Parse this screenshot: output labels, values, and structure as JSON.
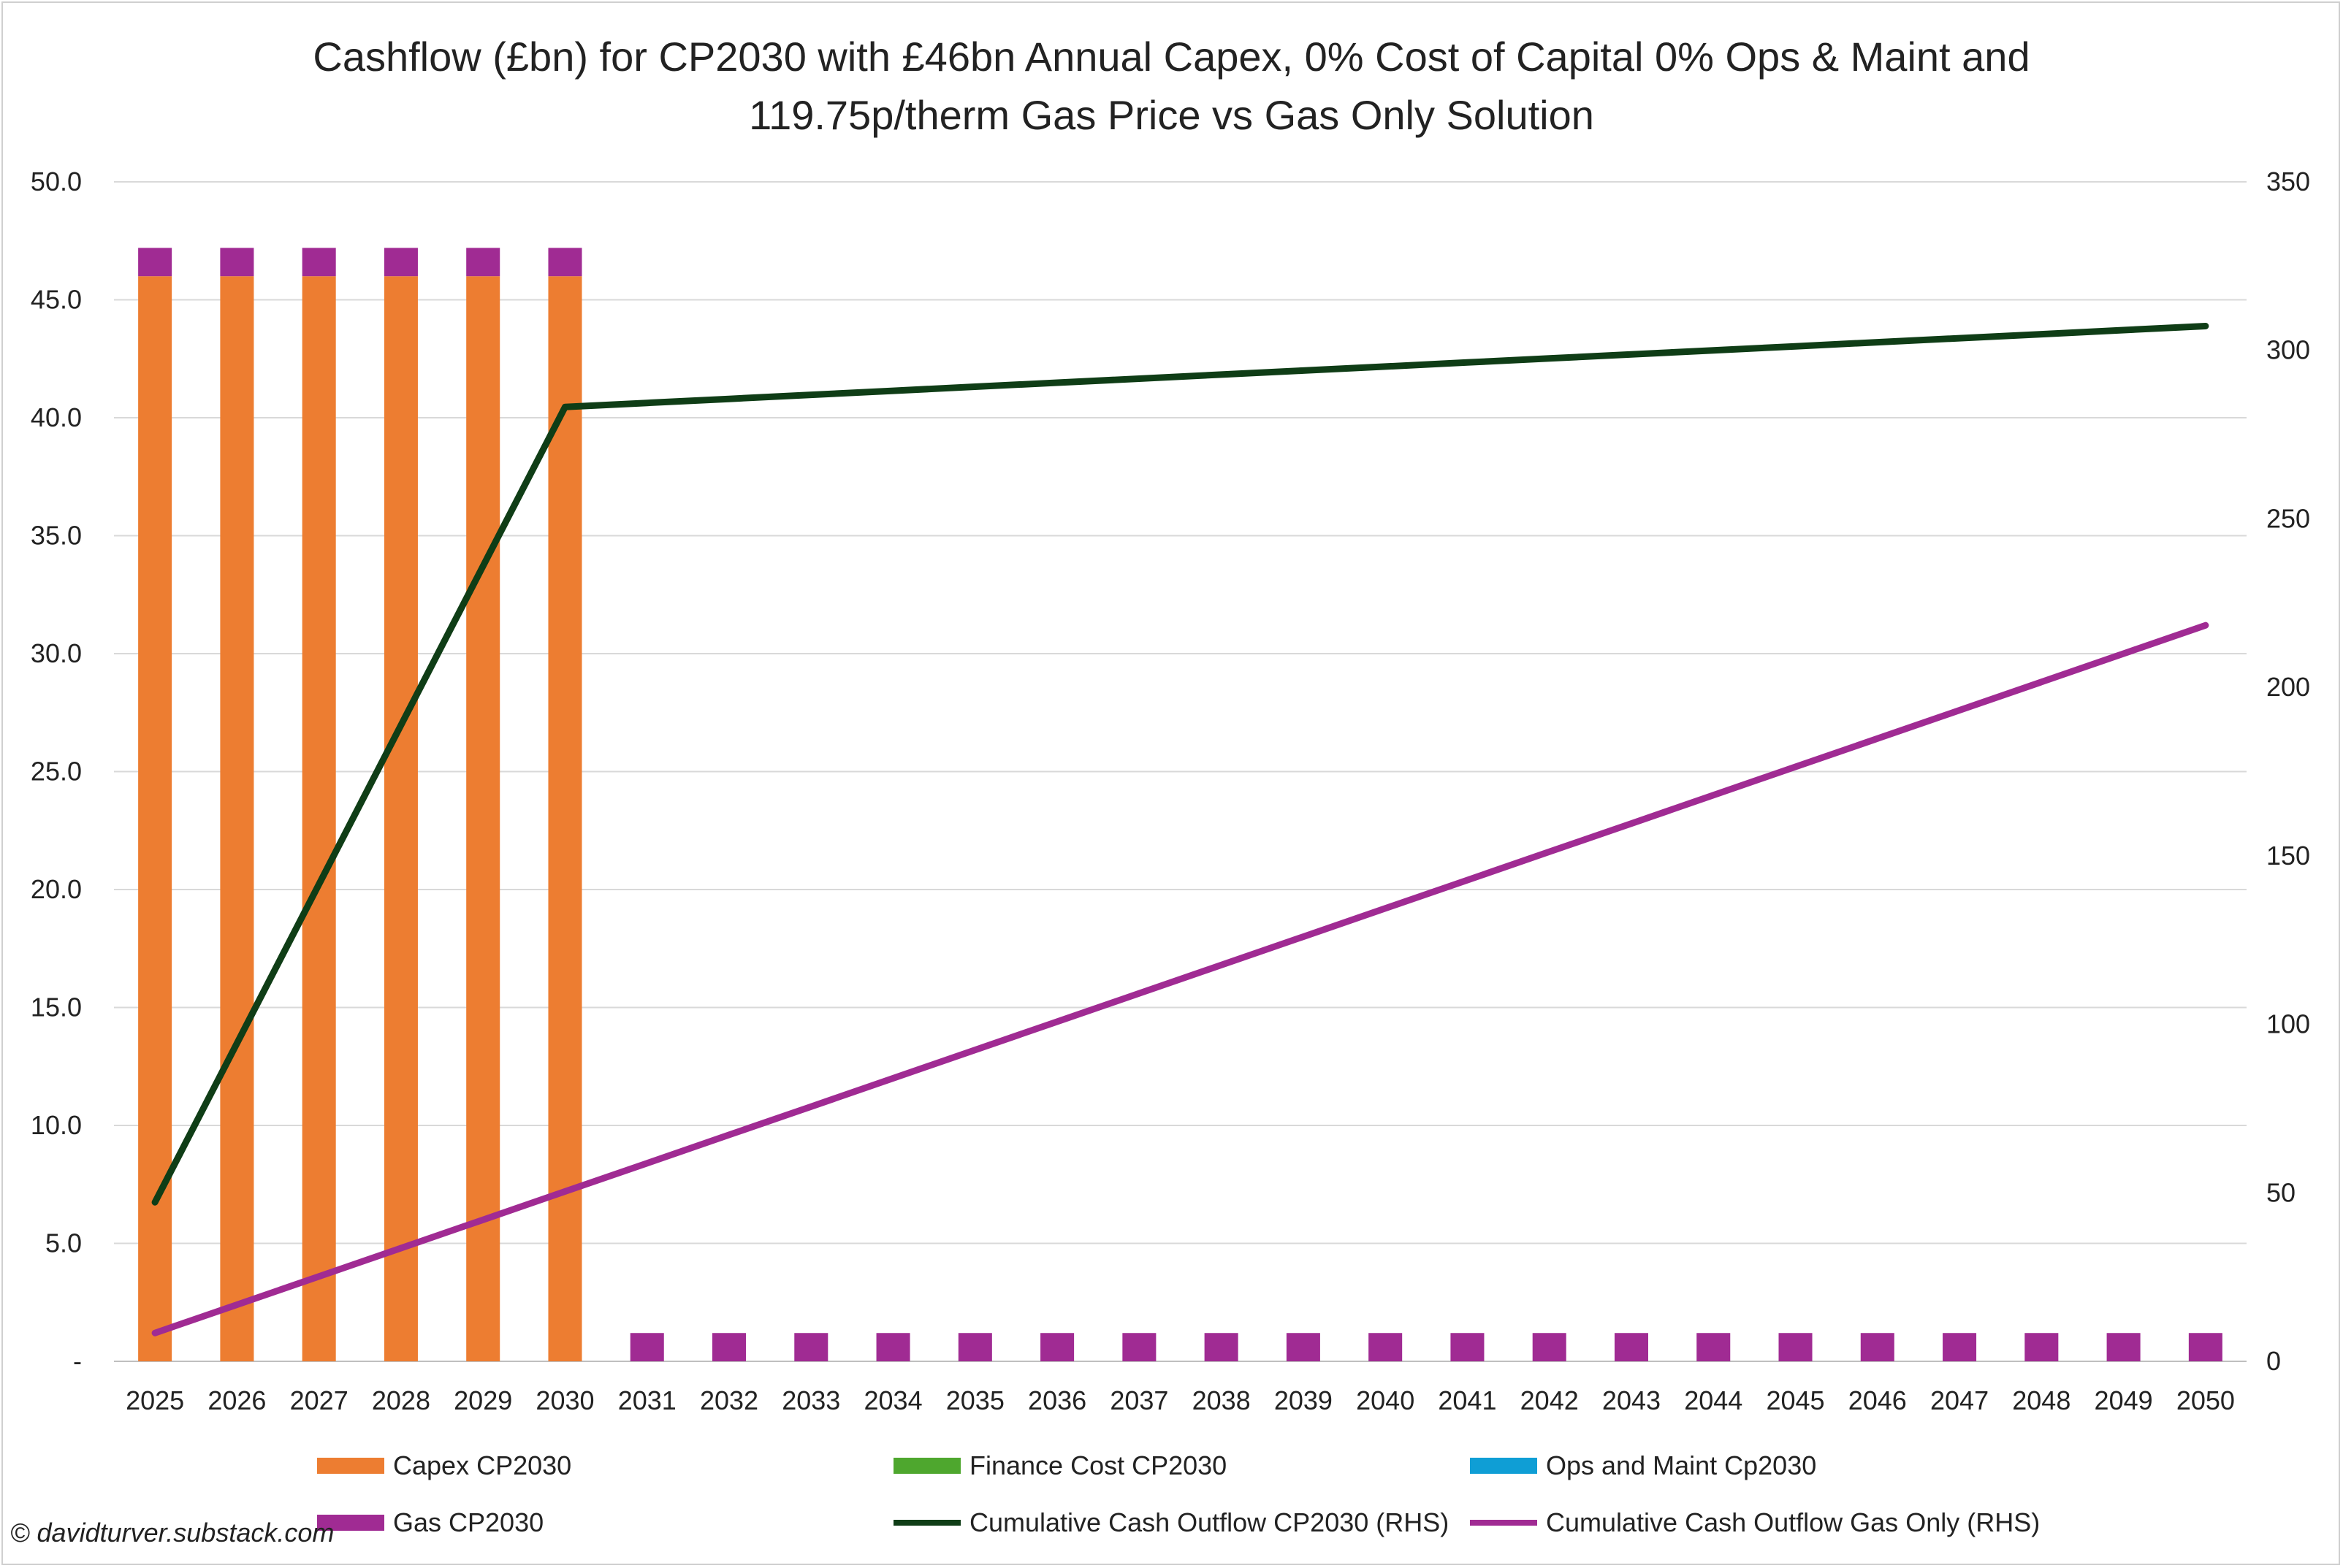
{
  "chart_data": {
    "type": "bar",
    "title_lines": [
      "Cashflow (£bn) for CP2030 with £46bn Annual Capex, 0% Cost of Capital 0% Ops & Maint and",
      "119.75p/therm Gas Price vs Gas Only Solution"
    ],
    "categories": [
      "2025",
      "2026",
      "2027",
      "2028",
      "2029",
      "2030",
      "2031",
      "2032",
      "2033",
      "2034",
      "2035",
      "2036",
      "2037",
      "2038",
      "2039",
      "2040",
      "2041",
      "2042",
      "2043",
      "2044",
      "2045",
      "2046",
      "2047",
      "2048",
      "2049",
      "2050"
    ],
    "left_axis": {
      "ylim": [
        0,
        50
      ],
      "ticks": [
        0,
        5,
        10,
        15,
        20,
        25,
        30,
        35,
        40,
        45,
        50
      ],
      "tick_labels": [
        "-",
        "5.0",
        "10.0",
        "15.0",
        "20.0",
        "25.0",
        "30.0",
        "35.0",
        "40.0",
        "45.0",
        "50.0"
      ]
    },
    "right_axis": {
      "ylim": [
        0,
        350
      ],
      "ticks": [
        0,
        50,
        100,
        150,
        200,
        250,
        300,
        350
      ],
      "tick_labels": [
        "0",
        "50",
        "100",
        "150",
        "200",
        "250",
        "300",
        "350"
      ]
    },
    "grid": true,
    "legend_position": "bottom",
    "series": [
      {
        "name": "Capex CP2030",
        "kind": "bar",
        "axis": "left",
        "color": "#ED7D31",
        "values": [
          46,
          46,
          46,
          46,
          46,
          46,
          0,
          0,
          0,
          0,
          0,
          0,
          0,
          0,
          0,
          0,
          0,
          0,
          0,
          0,
          0,
          0,
          0,
          0,
          0,
          0
        ]
      },
      {
        "name": "Finance Cost CP2030",
        "kind": "bar",
        "axis": "left",
        "color": "#4EA72E",
        "values": [
          0,
          0,
          0,
          0,
          0,
          0,
          0,
          0,
          0,
          0,
          0,
          0,
          0,
          0,
          0,
          0,
          0,
          0,
          0,
          0,
          0,
          0,
          0,
          0,
          0,
          0
        ]
      },
      {
        "name": "Ops and Maint Cp2030",
        "kind": "bar",
        "axis": "left",
        "color": "#0F9ED5",
        "values": [
          0,
          0,
          0,
          0,
          0,
          0,
          0,
          0,
          0,
          0,
          0,
          0,
          0,
          0,
          0,
          0,
          0,
          0,
          0,
          0,
          0,
          0,
          0,
          0,
          0,
          0
        ]
      },
      {
        "name": "Gas CP2030",
        "kind": "bar",
        "axis": "left",
        "color": "#A02B93",
        "values": [
          1.2,
          1.2,
          1.2,
          1.2,
          1.2,
          1.2,
          1.2,
          1.2,
          1.2,
          1.2,
          1.2,
          1.2,
          1.2,
          1.2,
          1.2,
          1.2,
          1.2,
          1.2,
          1.2,
          1.2,
          1.2,
          1.2,
          1.2,
          1.2,
          1.2,
          1.2
        ]
      },
      {
        "name": "Cumulative Cash Outflow CP2030 (RHS)",
        "kind": "line",
        "axis": "right",
        "color": "#0F3D16",
        "values": [
          47.2,
          94.4,
          141.6,
          188.8,
          236.0,
          283.2,
          284.4,
          285.6,
          286.8,
          288.0,
          289.2,
          290.4,
          291.6,
          292.8,
          294.0,
          295.2,
          296.4,
          297.6,
          298.8,
          300.0,
          301.2,
          302.4,
          303.6,
          304.8,
          306.0,
          307.2
        ]
      },
      {
        "name": "Cumulative Cash Outflow Gas Only (RHS)",
        "kind": "line",
        "axis": "right",
        "color": "#A02B93",
        "values": [
          8.4,
          16.8,
          25.2,
          33.6,
          42.0,
          50.4,
          58.8,
          67.2,
          75.6,
          84.0,
          92.4,
          100.8,
          109.2,
          117.6,
          126.0,
          134.4,
          142.8,
          151.2,
          159.6,
          168.0,
          176.4,
          184.8,
          193.2,
          201.6,
          210.0,
          218.4
        ]
      }
    ]
  },
  "legend": {
    "items": [
      {
        "label": "Capex CP2030",
        "kind": "bar",
        "color": "#ED7D31"
      },
      {
        "label": "Finance Cost CP2030",
        "kind": "bar",
        "color": "#4EA72E"
      },
      {
        "label": "Ops and Maint Cp2030",
        "kind": "bar",
        "color": "#0F9ED5"
      },
      {
        "label": "Gas CP2030",
        "kind": "bar",
        "color": "#A02B93"
      },
      {
        "label": "Cumulative Cash Outflow CP2030 (RHS)",
        "kind": "line",
        "color": "#0F3D16"
      },
      {
        "label": "Cumulative Cash Outflow Gas Only (RHS)",
        "kind": "line",
        "color": "#A02B93"
      }
    ]
  },
  "footer": {
    "copyright": "© davidturver.substack.com"
  }
}
